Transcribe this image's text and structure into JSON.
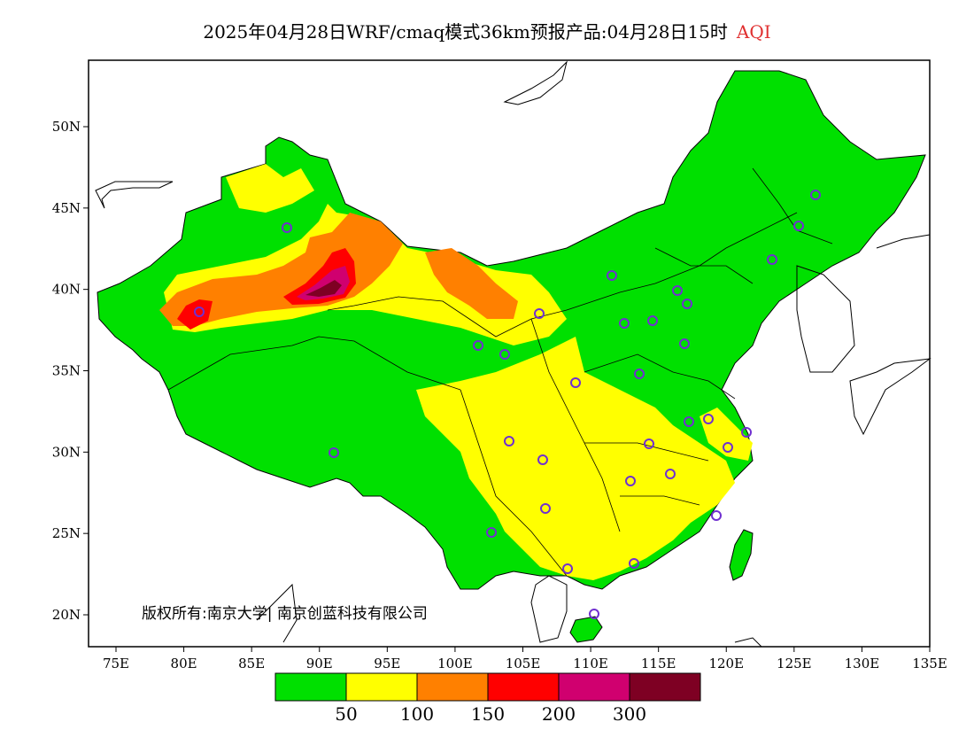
{
  "title": {
    "main": "2025年04月28日WRF/cmaq模式36km预报产品:04月28日15时",
    "variable": "AQI",
    "variable_color": "#e03030"
  },
  "copyright": "版权所有:南京大学| 南京创蓝科技有限公司",
  "axes": {
    "lon_ticks": [
      "75E",
      "80E",
      "85E",
      "90E",
      "95E",
      "100E",
      "105E",
      "110E",
      "115E",
      "120E",
      "125E",
      "130E",
      "135E"
    ],
    "lat_ticks": [
      "50N",
      "45N",
      "40N",
      "35N",
      "30N",
      "25N",
      "20N"
    ]
  },
  "legend": {
    "colors": [
      "#00e000",
      "#ffff00",
      "#ff8000",
      "#ff0000",
      "#d0006f",
      "#7e0023"
    ],
    "labels": [
      "50",
      "100",
      "150",
      "200",
      "300"
    ]
  },
  "map": {
    "region": "China",
    "base_color": "#00e000",
    "station_marker_color": "#7030d0"
  }
}
